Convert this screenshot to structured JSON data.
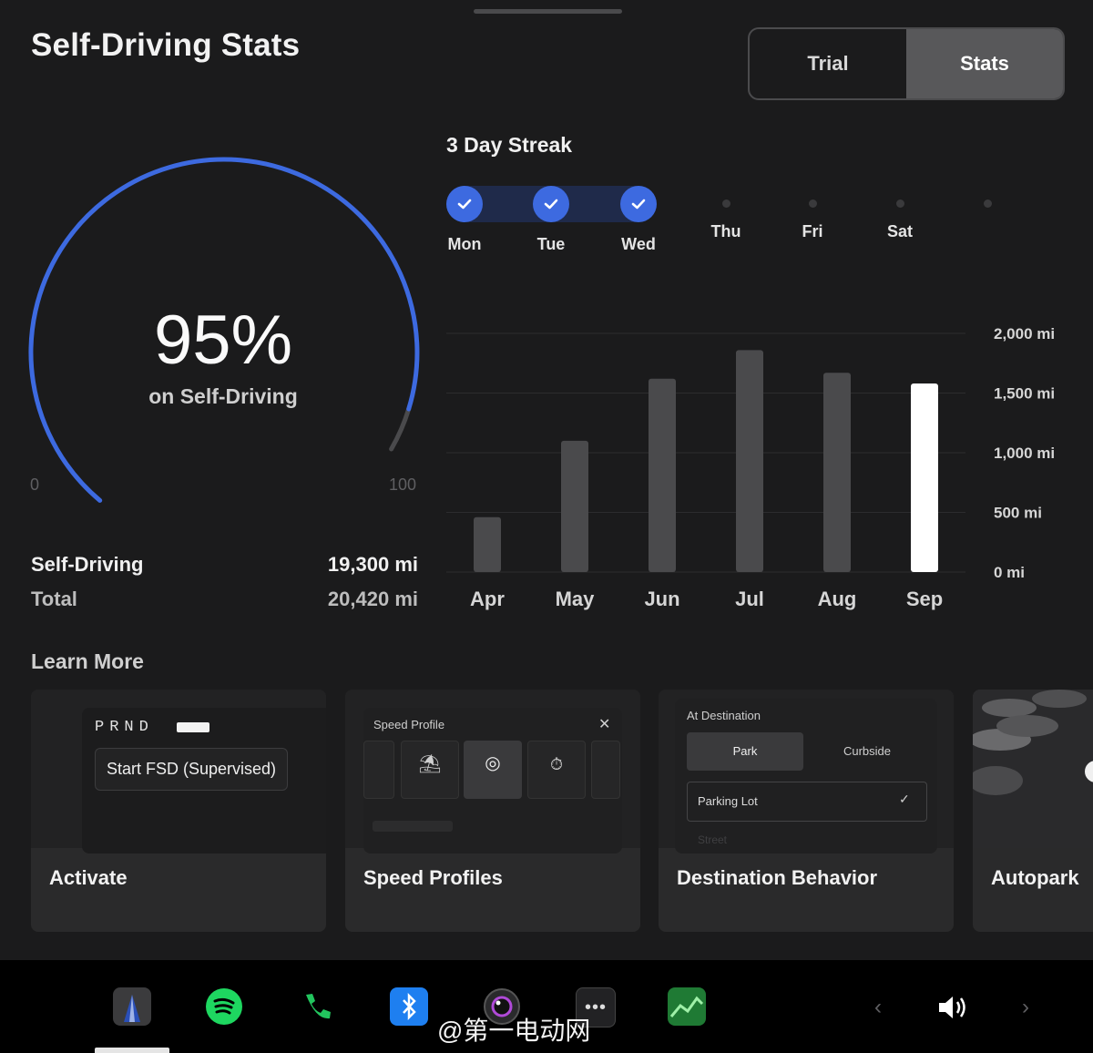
{
  "header": {
    "title": "Self-Driving Stats"
  },
  "segment": {
    "options": [
      "Trial",
      "Stats"
    ],
    "selected": "Stats"
  },
  "gauge": {
    "percent_text": "95%",
    "percent_value": 95,
    "subtitle": "on Self-Driving",
    "min_label": "0",
    "max_label": "100"
  },
  "stats": {
    "self_driving_label": "Self-Driving",
    "self_driving_value": "19,300 mi",
    "total_label": "Total",
    "total_value": "20,420 mi"
  },
  "streak": {
    "title": "3 Day Streak",
    "days": [
      {
        "label": "Mon",
        "done": true
      },
      {
        "label": "Tue",
        "done": true
      },
      {
        "label": "Wed",
        "done": true
      },
      {
        "label": "Thu",
        "done": false
      },
      {
        "label": "Fri",
        "done": false
      },
      {
        "label": "Sat",
        "done": false
      }
    ]
  },
  "chart_data": {
    "type": "bar",
    "categories": [
      "Apr",
      "May",
      "Jun",
      "Jul",
      "Aug",
      "Sep"
    ],
    "values": [
      460,
      1100,
      1620,
      1860,
      1670,
      1580
    ],
    "highlight_index": 5,
    "ylim": [
      0,
      2000
    ],
    "yticks": [
      "0 mi",
      "500 mi",
      "1,000 mi",
      "1,500 mi",
      "2,000 mi"
    ],
    "ytick_values": [
      0,
      500,
      1000,
      1500,
      2000
    ],
    "y_axis_position": "right",
    "grid": true,
    "bar_color": "#4a4a4c",
    "highlight_color": "#ffffff"
  },
  "learn": {
    "title": "Learn More",
    "cards": [
      {
        "caption": "Activate",
        "prnd": "PRND",
        "button": "Start FSD (Supervised)"
      },
      {
        "caption": "Speed Profiles",
        "panel_title": "Speed Profile"
      },
      {
        "caption": "Destination Behavior",
        "panel_title": "At Destination",
        "tab1": "Park",
        "tab2": "Curbside",
        "option": "Parking Lot",
        "faded_option": "Street"
      },
      {
        "caption": "Autopark"
      }
    ]
  },
  "dock": {
    "apps": [
      "navigation-icon",
      "spotify-icon",
      "phone-icon",
      "bluetooth-icon",
      "camera-icon",
      "more-apps-icon",
      "stocks-icon"
    ],
    "volume_icon": "volume-icon"
  },
  "watermark": {
    "text": "@第一电动网"
  },
  "colors": {
    "accent": "#3d6ae0",
    "background": "#1b1b1c",
    "card": "#2a2a2b"
  }
}
